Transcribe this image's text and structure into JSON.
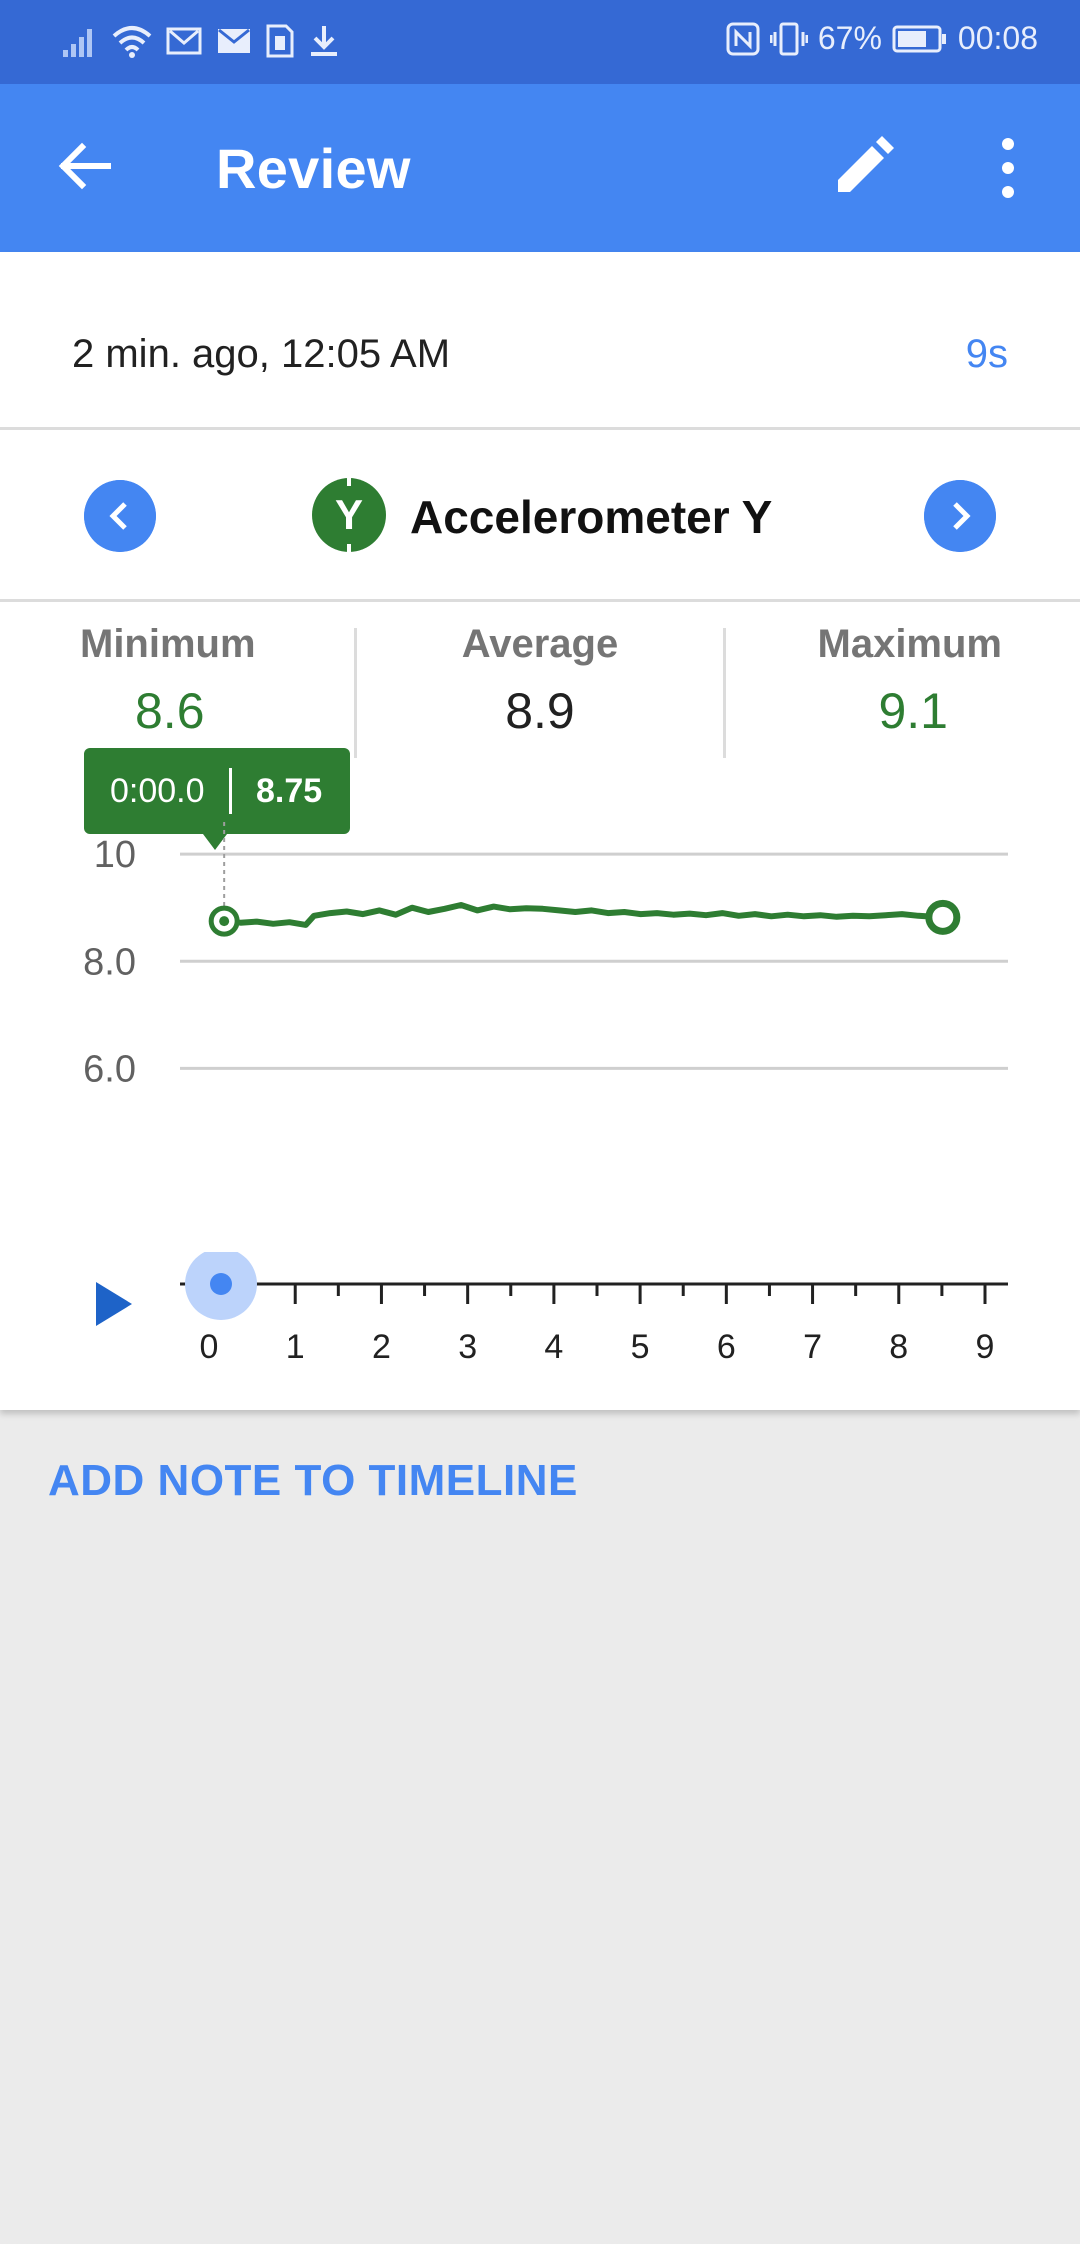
{
  "status_bar": {
    "battery": "67%",
    "time": "00:08",
    "icons": [
      "signal-icon",
      "wifi-icon",
      "gmail-icon",
      "mail-icon",
      "sim-icon",
      "download-icon",
      "nfc-icon",
      "vibrate-icon",
      "battery-icon"
    ]
  },
  "app_bar": {
    "title": "Review",
    "back_icon": "arrow-back-icon",
    "edit_icon": "pencil-icon",
    "more_icon": "more-vert-icon"
  },
  "run": {
    "date": "2 min. ago, 12:05 AM",
    "duration": "9s"
  },
  "sensor": {
    "badge": "Y",
    "name": "Accelerometer Y"
  },
  "stats": {
    "minimum_label": "Minimum",
    "minimum_value": "8.6",
    "average_label": "Average",
    "average_value": "8.9",
    "maximum_label": "Maximum",
    "maximum_value": "9.1"
  },
  "tooltip": {
    "time": "0:00.0",
    "value": "8.75"
  },
  "colors": {
    "primary": "#4486f2",
    "status_bar": "#3569d4",
    "series": "#2e7d32"
  },
  "chart_data": {
    "type": "line",
    "ylim": [
      5,
      10.6
    ],
    "y_ticks": [
      "10",
      "8.0",
      "6.0"
    ],
    "y_tick_values": [
      10,
      8,
      6
    ],
    "x_ticks": [
      "0",
      "1",
      "2",
      "3",
      "4",
      "5",
      "6",
      "7",
      "8",
      "9"
    ],
    "xlim": [
      0,
      9
    ],
    "grid": true,
    "series": [
      {
        "x": [
          0.1,
          0.3,
          0.5,
          0.7,
          0.9,
          1.1,
          1.2,
          1.4,
          1.6,
          1.8,
          2.0,
          2.2,
          2.4,
          2.6,
          2.8,
          3.0,
          3.2,
          3.4,
          3.6,
          3.8,
          4.0,
          4.2,
          4.4,
          4.6,
          4.8,
          5.0,
          5.2,
          5.4,
          5.6,
          5.8,
          6.0,
          6.2,
          6.4,
          6.6,
          6.8,
          7.0,
          7.2,
          7.4,
          7.6,
          7.8,
          8.0,
          8.2,
          8.4,
          8.6,
          8.9
        ],
        "y": [
          8.75,
          8.72,
          8.74,
          8.7,
          8.73,
          8.68,
          8.85,
          8.9,
          8.93,
          8.88,
          8.95,
          8.87,
          9.0,
          8.92,
          8.98,
          9.05,
          8.95,
          9.02,
          8.97,
          8.99,
          8.98,
          8.95,
          8.92,
          8.95,
          8.9,
          8.92,
          8.88,
          8.9,
          8.87,
          8.89,
          8.86,
          8.9,
          8.85,
          8.88,
          8.84,
          8.87,
          8.84,
          8.86,
          8.83,
          8.85,
          8.84,
          8.86,
          8.88,
          8.85,
          8.82
        ]
      }
    ],
    "cursor_x": 0.1,
    "cursor_value": 8.75
  },
  "playback": {
    "play_icon": "play-icon",
    "position": 0.0
  },
  "actions": {
    "add_note": "ADD NOTE TO TIMELINE"
  }
}
